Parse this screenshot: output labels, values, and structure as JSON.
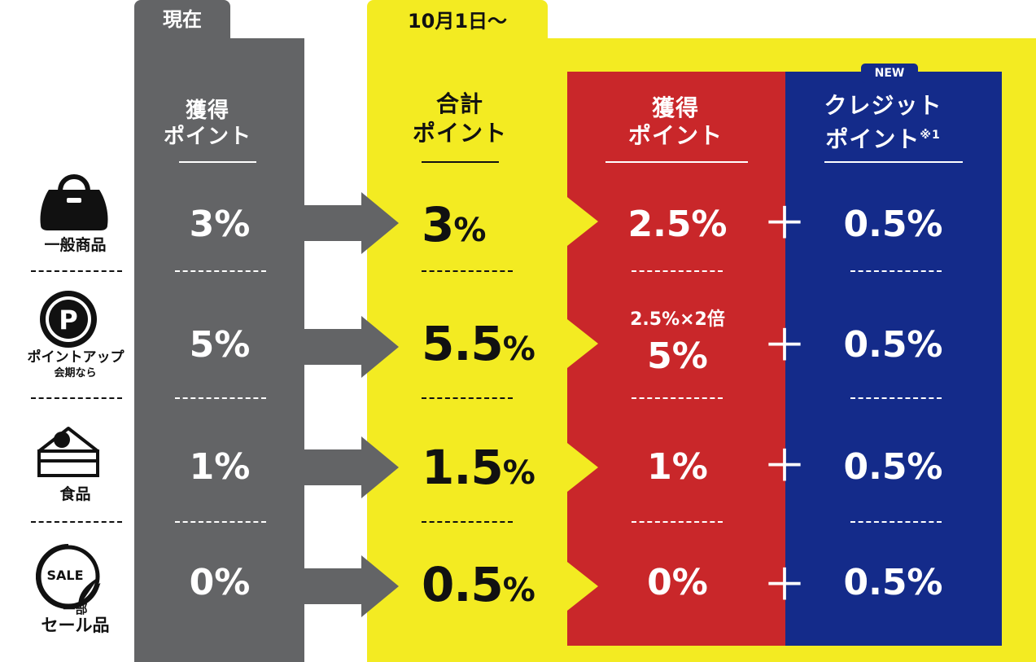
{
  "current": {
    "tab_label": "現在",
    "header": "獲得\nポイント",
    "values": [
      "3%",
      "5%",
      "1%",
      "0%"
    ]
  },
  "future": {
    "tab_label": "10月1日〜",
    "total_header": "合計\nポイント",
    "totals": [
      {
        "num": "3",
        "unit": "%"
      },
      {
        "num": "5.5",
        "unit": "%"
      },
      {
        "num": "1.5",
        "unit": "%"
      },
      {
        "num": "0.5",
        "unit": "%"
      }
    ],
    "earned_header": "獲得\nポイント",
    "earned": [
      "2.5%",
      "5%",
      "1%",
      "0%"
    ],
    "earned_note": "2.5%×2倍",
    "credit_badge": "NEW",
    "credit_header": "クレジット\nポイント",
    "credit_footnote": "※1",
    "credit": [
      "0.5%",
      "0.5%",
      "0.5%",
      "0.5%"
    ],
    "plus_sign": "＋"
  },
  "categories": [
    {
      "icon": "handbag-icon",
      "label": "一般商品"
    },
    {
      "icon": "point-p-icon",
      "label": "ポイントアップ",
      "sublabel": "会期なら"
    },
    {
      "icon": "cake-icon",
      "label": "食品"
    },
    {
      "icon": "sale-sticker-icon",
      "sublabel_top": "一部",
      "label": "セール品",
      "icon_text": "SALE"
    }
  ],
  "colors": {
    "gray": "#636466",
    "yellow": "#f3eb22",
    "red": "#c9272a",
    "navy": "#142b8a"
  }
}
